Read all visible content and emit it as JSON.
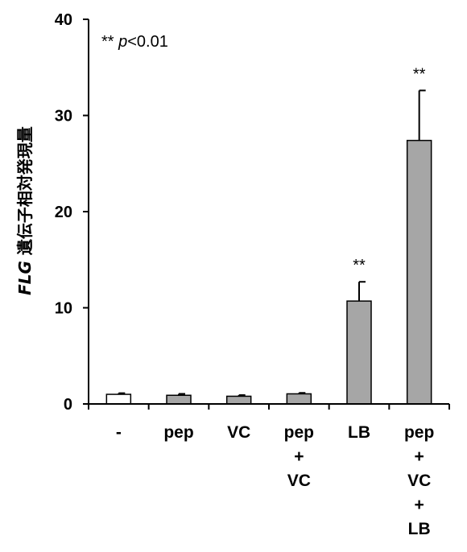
{
  "chart_data": {
    "type": "bar",
    "categories": [
      [
        "-"
      ],
      [
        "pep"
      ],
      [
        "VC"
      ],
      [
        "pep",
        "+",
        "VC"
      ],
      [
        "LB"
      ],
      [
        "pep",
        "+",
        "VC",
        "+",
        "LB"
      ]
    ],
    "values": [
      1.0,
      0.9,
      0.8,
      1.05,
      10.7,
      27.4
    ],
    "errors": [
      0.12,
      0.15,
      0.12,
      0.1,
      2.0,
      5.2
    ],
    "bar_colors": [
      "#ffffff",
      "#a6a6a6",
      "#a6a6a6",
      "#a6a6a6",
      "#a6a6a6",
      "#a6a6a6"
    ],
    "significance": [
      "",
      "",
      "",
      "",
      "**",
      "**"
    ],
    "ylim": [
      0,
      40
    ],
    "yticks": [
      0,
      10,
      20,
      30,
      40
    ],
    "ylabel_italic": "FLG",
    "ylabel_rest": " 遺伝子相対発現量",
    "annotation_prefix": "** ",
    "annotation_p": "p",
    "annotation_suffix": "<0.01",
    "grid": false
  }
}
